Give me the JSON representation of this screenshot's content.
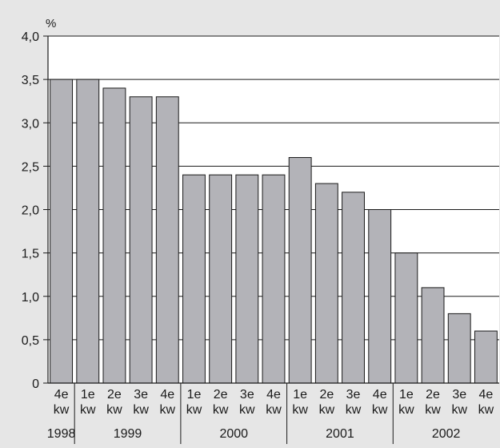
{
  "chart_data": {
    "type": "bar",
    "unit_label": "%",
    "ylim": [
      0,
      4.0
    ],
    "y_ticks": [
      {
        "value": 0,
        "label": "0"
      },
      {
        "value": 0.5,
        "label": "0,5"
      },
      {
        "value": 1.0,
        "label": "1,0"
      },
      {
        "value": 1.5,
        "label": "1,5"
      },
      {
        "value": 2.0,
        "label": "2,0"
      },
      {
        "value": 2.5,
        "label": "2,5"
      },
      {
        "value": 3.0,
        "label": "3,0"
      },
      {
        "value": 3.5,
        "label": "3,5"
      },
      {
        "value": 4.0,
        "label": "4,0"
      }
    ],
    "categories": [
      {
        "quarter": "4e",
        "sub": "kw",
        "year": "1998",
        "value": 3.5
      },
      {
        "quarter": "1e",
        "sub": "kw",
        "year": "1999",
        "value": 3.5
      },
      {
        "quarter": "2e",
        "sub": "kw",
        "year": "1999",
        "value": 3.4
      },
      {
        "quarter": "3e",
        "sub": "kw",
        "year": "1999",
        "value": 3.3
      },
      {
        "quarter": "4e",
        "sub": "kw",
        "year": "1999",
        "value": 3.3
      },
      {
        "quarter": "1e",
        "sub": "kw",
        "year": "2000",
        "value": 2.4
      },
      {
        "quarter": "2e",
        "sub": "kw",
        "year": "2000",
        "value": 2.4
      },
      {
        "quarter": "3e",
        "sub": "kw",
        "year": "2000",
        "value": 2.4
      },
      {
        "quarter": "4e",
        "sub": "kw",
        "year": "2000",
        "value": 2.4
      },
      {
        "quarter": "1e",
        "sub": "kw",
        "year": "2001",
        "value": 2.6
      },
      {
        "quarter": "2e",
        "sub": "kw",
        "year": "2001",
        "value": 2.3
      },
      {
        "quarter": "3e",
        "sub": "kw",
        "year": "2001",
        "value": 2.2
      },
      {
        "quarter": "4e",
        "sub": "kw",
        "year": "2001",
        "value": 2.0
      },
      {
        "quarter": "1e",
        "sub": "kw",
        "year": "2002",
        "value": 1.5
      },
      {
        "quarter": "2e",
        "sub": "kw",
        "year": "2002",
        "value": 1.1
      },
      {
        "quarter": "3e",
        "sub": "kw",
        "year": "2002",
        "value": 0.8
      },
      {
        "quarter": "4e",
        "sub": "kw",
        "year": "2002",
        "value": 0.6
      }
    ],
    "year_groups": [
      "1998",
      "1999",
      "2000",
      "2001",
      "2002"
    ],
    "grid": true,
    "legend": false,
    "colors": {
      "bar_fill": "#b3b3b8",
      "bar_stroke": "#1a1a1a",
      "plot_bg": "#ffffff",
      "page_bg": "#e6e6e6",
      "axis": "#1a1a1a"
    }
  }
}
